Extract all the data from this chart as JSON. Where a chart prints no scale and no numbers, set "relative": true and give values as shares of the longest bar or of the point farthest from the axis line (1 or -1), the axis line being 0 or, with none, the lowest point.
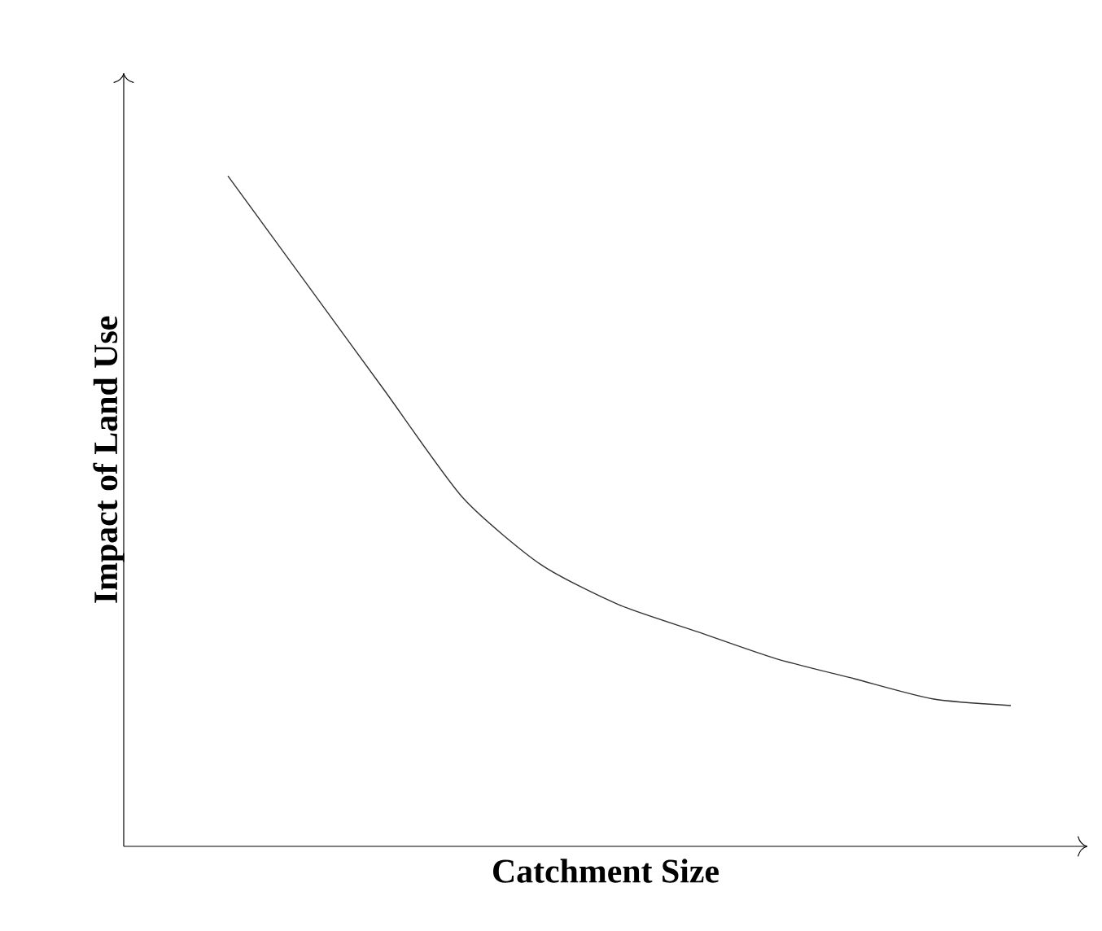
{
  "chart_data": {
    "type": "line",
    "relative": true,
    "xlabel": "Catchment Size",
    "ylabel": "Impact of Land Use",
    "categories": [
      null,
      null,
      null,
      null,
      null,
      null,
      null,
      null,
      null,
      null,
      null
    ],
    "series": [
      {
        "color": "#333333",
        "values": [
          1.0,
          0.84,
          0.68,
          0.52,
          0.42,
          0.36,
          0.32,
          0.28,
          0.25,
          0.22,
          0.21
        ]
      }
    ]
  }
}
